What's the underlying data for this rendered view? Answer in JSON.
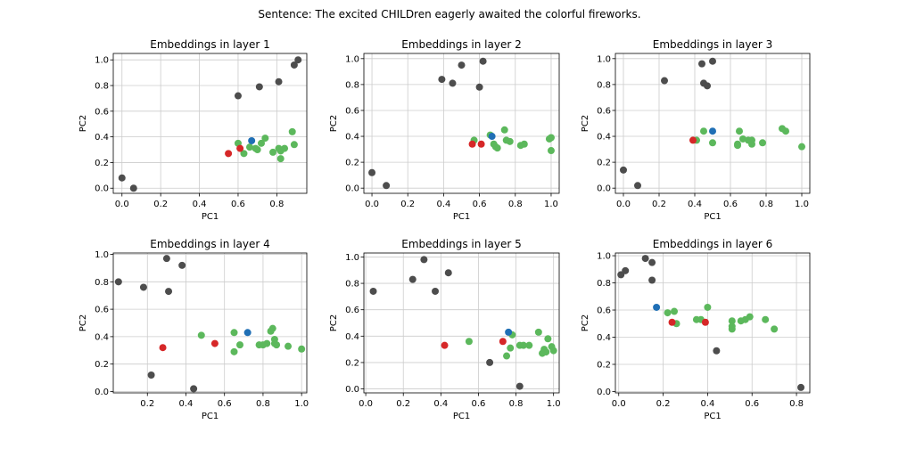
{
  "figure": {
    "suptitle": "Sentence: The excited CHILDren eagerly awaited the colorful fireworks."
  },
  "colors": {
    "context": "#4d4d4d",
    "token": "#5cb85c",
    "subword": "#d62728",
    "query": "#1f6fb5",
    "grid": "#cccccc",
    "axis": "#000000"
  },
  "chart_data": [
    {
      "type": "scatter",
      "title": "Embeddings in layer 1",
      "xlabel": "PC1",
      "ylabel": "PC2",
      "xlim": [
        -0.045,
        0.955
      ],
      "ylim": [
        -0.04,
        1.05
      ],
      "xticks": [
        "0.0",
        "0.2",
        "0.4",
        "0.6",
        "0.8"
      ],
      "xtick_values": [
        0,
        0.2,
        0.4,
        0.6,
        0.8
      ],
      "yticks": [
        "0.0",
        "0.2",
        "0.4",
        "0.6",
        "0.8",
        "1.0"
      ],
      "ytick_values": [
        0,
        0.2,
        0.4,
        0.6,
        0.8,
        1.0
      ],
      "grid": true,
      "series": [
        {
          "key": "context",
          "points": [
            [
              0.0,
              0.08
            ],
            [
              0.06,
              0.0
            ],
            [
              0.6,
              0.72
            ],
            [
              0.71,
              0.79
            ],
            [
              0.81,
              0.83
            ],
            [
              0.89,
              0.96
            ],
            [
              0.91,
              1.0
            ]
          ]
        },
        {
          "key": "token",
          "points": [
            [
              0.6,
              0.35
            ],
            [
              0.63,
              0.27
            ],
            [
              0.66,
              0.32
            ],
            [
              0.69,
              0.31
            ],
            [
              0.7,
              0.3
            ],
            [
              0.72,
              0.35
            ],
            [
              0.74,
              0.39
            ],
            [
              0.78,
              0.28
            ],
            [
              0.81,
              0.31
            ],
            [
              0.82,
              0.29
            ],
            [
              0.84,
              0.31
            ],
            [
              0.82,
              0.23
            ],
            [
              0.88,
              0.44
            ],
            [
              0.89,
              0.34
            ]
          ]
        },
        {
          "key": "subword",
          "points": [
            [
              0.55,
              0.27
            ],
            [
              0.61,
              0.31
            ]
          ]
        },
        {
          "key": "query",
          "points": [
            [
              0.67,
              0.37
            ]
          ]
        }
      ]
    },
    {
      "type": "scatter",
      "title": "Embeddings in layer 2",
      "xlabel": "PC1",
      "ylabel": "PC2",
      "xlim": [
        -0.045,
        1.045
      ],
      "ylim": [
        -0.04,
        1.04
      ],
      "xticks": [
        "0.0",
        "0.2",
        "0.4",
        "0.6",
        "0.8",
        "1.0"
      ],
      "xtick_values": [
        0,
        0.2,
        0.4,
        0.6,
        0.8,
        1.0
      ],
      "yticks": [
        "0.0",
        "0.2",
        "0.4",
        "0.6",
        "0.8",
        "1.0"
      ],
      "ytick_values": [
        0,
        0.2,
        0.4,
        0.6,
        0.8,
        1.0
      ],
      "grid": true,
      "series": [
        {
          "key": "context",
          "points": [
            [
              0.0,
              0.12
            ],
            [
              0.08,
              0.02
            ],
            [
              0.39,
              0.84
            ],
            [
              0.45,
              0.81
            ],
            [
              0.5,
              0.95
            ],
            [
              0.6,
              0.78
            ],
            [
              0.62,
              0.98
            ]
          ]
        },
        {
          "key": "token",
          "points": [
            [
              0.57,
              0.37
            ],
            [
              0.66,
              0.41
            ],
            [
              0.68,
              0.34
            ],
            [
              0.69,
              0.32
            ],
            [
              0.7,
              0.31
            ],
            [
              0.74,
              0.45
            ],
            [
              0.75,
              0.37
            ],
            [
              0.77,
              0.36
            ],
            [
              0.83,
              0.33
            ],
            [
              0.85,
              0.34
            ],
            [
              0.99,
              0.38
            ],
            [
              1.0,
              0.39
            ],
            [
              1.0,
              0.29
            ]
          ]
        },
        {
          "key": "subword",
          "points": [
            [
              0.56,
              0.34
            ],
            [
              0.61,
              0.34
            ]
          ]
        },
        {
          "key": "query",
          "points": [
            [
              0.67,
              0.4
            ]
          ]
        }
      ]
    },
    {
      "type": "scatter",
      "title": "Embeddings in layer 3",
      "xlabel": "PC1",
      "ylabel": "PC2",
      "xlim": [
        -0.045,
        1.045
      ],
      "ylim": [
        -0.04,
        1.04
      ],
      "xticks": [
        "0.0",
        "0.2",
        "0.4",
        "0.6",
        "0.8",
        "1.0"
      ],
      "xtick_values": [
        0,
        0.2,
        0.4,
        0.6,
        0.8,
        1.0
      ],
      "yticks": [
        "0.0",
        "0.2",
        "0.4",
        "0.6",
        "0.8",
        "1.0"
      ],
      "ytick_values": [
        0,
        0.2,
        0.4,
        0.6,
        0.8,
        1.0
      ],
      "grid": true,
      "series": [
        {
          "key": "context",
          "points": [
            [
              0.0,
              0.14
            ],
            [
              0.08,
              0.02
            ],
            [
              0.23,
              0.83
            ],
            [
              0.44,
              0.96
            ],
            [
              0.45,
              0.81
            ],
            [
              0.47,
              0.79
            ],
            [
              0.5,
              0.98
            ]
          ]
        },
        {
          "key": "token",
          "points": [
            [
              0.41,
              0.37
            ],
            [
              0.45,
              0.44
            ],
            [
              0.5,
              0.35
            ],
            [
              0.64,
              0.34
            ],
            [
              0.64,
              0.33
            ],
            [
              0.65,
              0.44
            ],
            [
              0.67,
              0.38
            ],
            [
              0.7,
              0.37
            ],
            [
              0.72,
              0.34
            ],
            [
              0.72,
              0.37
            ],
            [
              0.78,
              0.35
            ],
            [
              0.89,
              0.46
            ],
            [
              0.91,
              0.44
            ],
            [
              1.0,
              0.32
            ]
          ]
        },
        {
          "key": "subword",
          "points": [
            [
              0.39,
              0.37
            ]
          ]
        },
        {
          "key": "query",
          "points": [
            [
              0.5,
              0.44
            ]
          ]
        }
      ]
    },
    {
      "type": "scatter",
      "title": "Embeddings in layer 4",
      "xlabel": "PC1",
      "ylabel": "PC2",
      "xlim": [
        0.023,
        1.027
      ],
      "ylim": [
        -0.01,
        1.01
      ],
      "xticks": [
        "0.2",
        "0.4",
        "0.6",
        "0.8",
        "1.0"
      ],
      "xtick_values": [
        0.2,
        0.4,
        0.6,
        0.8,
        1.0
      ],
      "yticks": [
        "0.0",
        "0.2",
        "0.4",
        "0.6",
        "0.8",
        "1.0"
      ],
      "ytick_values": [
        0,
        0.2,
        0.4,
        0.6,
        0.8,
        1.0
      ],
      "grid": true,
      "series": [
        {
          "key": "context",
          "points": [
            [
              0.05,
              0.8
            ],
            [
              0.18,
              0.76
            ],
            [
              0.22,
              0.12
            ],
            [
              0.3,
              0.97
            ],
            [
              0.31,
              0.73
            ],
            [
              0.38,
              0.92
            ],
            [
              0.44,
              0.02
            ]
          ]
        },
        {
          "key": "token",
          "points": [
            [
              0.48,
              0.41
            ],
            [
              0.65,
              0.43
            ],
            [
              0.65,
              0.29
            ],
            [
              0.68,
              0.34
            ],
            [
              0.78,
              0.34
            ],
            [
              0.8,
              0.34
            ],
            [
              0.82,
              0.35
            ],
            [
              0.84,
              0.44
            ],
            [
              0.85,
              0.46
            ],
            [
              0.86,
              0.38
            ],
            [
              0.86,
              0.35
            ],
            [
              0.87,
              0.34
            ],
            [
              0.93,
              0.33
            ],
            [
              1.0,
              0.31
            ]
          ]
        },
        {
          "key": "subword",
          "points": [
            [
              0.28,
              0.32
            ],
            [
              0.55,
              0.35
            ]
          ]
        },
        {
          "key": "query",
          "points": [
            [
              0.72,
              0.43
            ]
          ]
        }
      ]
    },
    {
      "type": "scatter",
      "title": "Embeddings in layer 5",
      "xlabel": "PC1",
      "ylabel": "PC2",
      "xlim": [
        -0.01,
        1.03
      ],
      "ylim": [
        -0.03,
        1.03
      ],
      "xticks": [
        "0.0",
        "0.2",
        "0.4",
        "0.6",
        "0.8",
        "1.0"
      ],
      "xtick_values": [
        0,
        0.2,
        0.4,
        0.6,
        0.8,
        1.0
      ],
      "yticks": [
        "0.0",
        "0.2",
        "0.4",
        "0.6",
        "0.8",
        "1.0"
      ],
      "ytick_values": [
        0,
        0.2,
        0.4,
        0.6,
        0.8,
        1.0
      ],
      "grid": true,
      "series": [
        {
          "key": "context",
          "points": [
            [
              0.04,
              0.74
            ],
            [
              0.25,
              0.83
            ],
            [
              0.31,
              0.98
            ],
            [
              0.37,
              0.74
            ],
            [
              0.44,
              0.88
            ],
            [
              0.66,
              0.2
            ],
            [
              0.82,
              0.02
            ]
          ]
        },
        {
          "key": "token",
          "points": [
            [
              0.55,
              0.36
            ],
            [
              0.75,
              0.25
            ],
            [
              0.77,
              0.31
            ],
            [
              0.78,
              0.41
            ],
            [
              0.82,
              0.33
            ],
            [
              0.84,
              0.33
            ],
            [
              0.87,
              0.33
            ],
            [
              0.92,
              0.43
            ],
            [
              0.94,
              0.27
            ],
            [
              0.95,
              0.3
            ],
            [
              0.96,
              0.28
            ],
            [
              0.97,
              0.38
            ],
            [
              0.99,
              0.32
            ],
            [
              1.0,
              0.29
            ]
          ]
        },
        {
          "key": "subword",
          "points": [
            [
              0.42,
              0.33
            ],
            [
              0.73,
              0.36
            ]
          ]
        },
        {
          "key": "query",
          "points": [
            [
              0.76,
              0.43
            ]
          ]
        }
      ]
    },
    {
      "type": "scatter",
      "title": "Embeddings in layer 6",
      "xlabel": "PC1",
      "ylabel": "PC2",
      "xlim": [
        -0.015,
        0.86
      ],
      "ylim": [
        -0.01,
        1.02
      ],
      "xticks": [
        "0.0",
        "0.2",
        "0.4",
        "0.6",
        "0.8"
      ],
      "xtick_values": [
        0,
        0.2,
        0.4,
        0.6,
        0.8
      ],
      "yticks": [
        "0.0",
        "0.2",
        "0.4",
        "0.6",
        "0.8",
        "1.0"
      ],
      "ytick_values": [
        0,
        0.2,
        0.4,
        0.6,
        0.8,
        1.0
      ],
      "grid": true,
      "series": [
        {
          "key": "context",
          "points": [
            [
              0.01,
              0.86
            ],
            [
              0.03,
              0.89
            ],
            [
              0.12,
              0.98
            ],
            [
              0.15,
              0.82
            ],
            [
              0.15,
              0.95
            ],
            [
              0.44,
              0.3
            ],
            [
              0.82,
              0.03
            ]
          ]
        },
        {
          "key": "token",
          "points": [
            [
              0.22,
              0.58
            ],
            [
              0.25,
              0.59
            ],
            [
              0.26,
              0.5
            ],
            [
              0.35,
              0.53
            ],
            [
              0.37,
              0.53
            ],
            [
              0.4,
              0.62
            ],
            [
              0.51,
              0.52
            ],
            [
              0.51,
              0.48
            ],
            [
              0.51,
              0.46
            ],
            [
              0.55,
              0.52
            ],
            [
              0.57,
              0.53
            ],
            [
              0.59,
              0.55
            ],
            [
              0.66,
              0.53
            ],
            [
              0.7,
              0.46
            ]
          ]
        },
        {
          "key": "subword",
          "points": [
            [
              0.24,
              0.51
            ],
            [
              0.39,
              0.51
            ]
          ]
        },
        {
          "key": "query",
          "points": [
            [
              0.17,
              0.62
            ]
          ]
        }
      ]
    }
  ]
}
